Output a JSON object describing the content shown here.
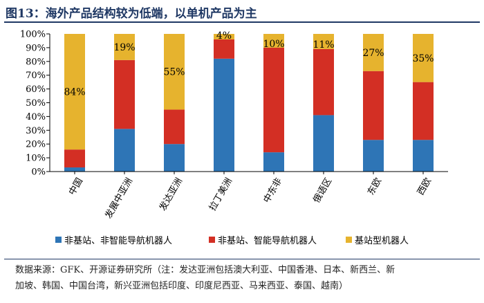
{
  "header": {
    "title": "图13：海外产品结构较为低端，以单机产品为主"
  },
  "chart_data": {
    "type": "bar",
    "stacked": true,
    "categories": [
      "中国",
      "发展中亚洲",
      "发达亚洲",
      "拉丁美洲",
      "中东非",
      "俄语区",
      "东欧",
      "西欧"
    ],
    "series": [
      {
        "name": "非基站、非智能导航机器人",
        "color": "#2e75b6",
        "values": [
          3,
          31,
          20,
          82,
          14,
          41,
          23,
          23
        ]
      },
      {
        "name": "非基站、智能导航机器人",
        "color": "#d32f24",
        "values": [
          13,
          50,
          25,
          14,
          76,
          48,
          50,
          42
        ]
      },
      {
        "name": "基站型机器人",
        "color": "#e6b32e",
        "values": [
          84,
          19,
          55,
          4,
          10,
          11,
          27,
          35
        ]
      }
    ],
    "data_labels": [
      "84%",
      "19%",
      "55%",
      "4%",
      "10%",
      "11%",
      "27%",
      "35%"
    ],
    "yticks": [
      "0%",
      "10%",
      "20%",
      "30%",
      "40%",
      "50%",
      "60%",
      "70%",
      "80%",
      "90%",
      "100%"
    ],
    "ylim": [
      0,
      100
    ],
    "legend_position": "bottom",
    "grid": false
  },
  "source_lines": [
    "数据来源：GFK、开源证券研究所（注：发达亚洲包括澳大利亚、中国香港、日本、新西兰、新",
    "加坡、韩国、中国台湾，新兴亚洲包括印度、印度尼西亚、马来西亚、泰国、越南）"
  ]
}
